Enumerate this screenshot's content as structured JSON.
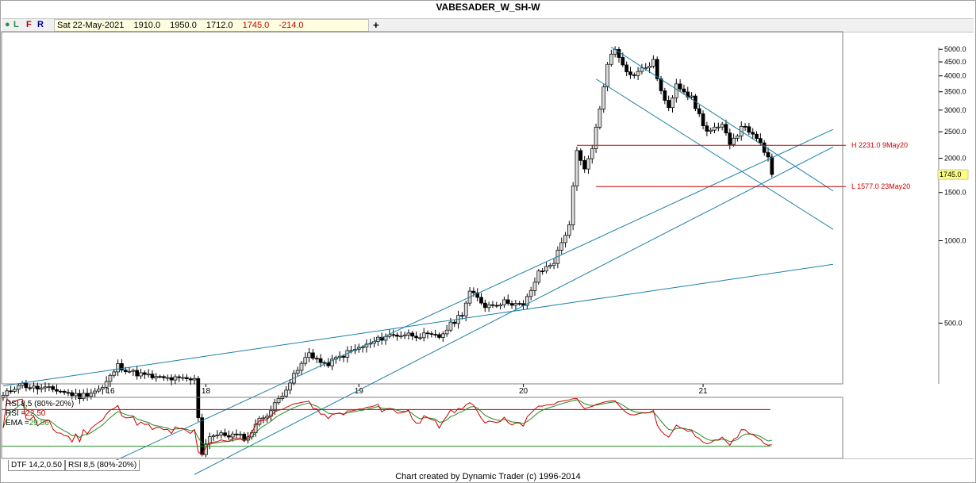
{
  "title": "VABESADER_W_SH-W",
  "toolbar": {
    "buttons": [
      "L",
      "F",
      "R"
    ],
    "date": "Sat 22-May-2021",
    "open": "1910.0",
    "high": "1950.0",
    "low": "1712.0",
    "close": "1745.0",
    "change": "-214.0",
    "plus_label": "+"
  },
  "colors": {
    "trendline": "#1a80a8",
    "level_line": "#cc0000",
    "rsi_line": "#cc0000",
    "ema_line": "#228b22",
    "last_price_bg": "#ffff80"
  },
  "chart_data": [
    {
      "type": "candlestick",
      "scale": "log",
      "ylim": [
        300,
        5800
      ],
      "y_ticks": [
        "500.0",
        "1000.0",
        "1500.0",
        "2000.0",
        "2500.0",
        "3000.0",
        "3500.0",
        "4000.0",
        "4500.0",
        "5000.0"
      ],
      "y_tick_values": [
        500,
        1000,
        1500,
        2000,
        2500,
        3000,
        3500,
        4000,
        4500,
        5000
      ],
      "x_labels": [
        "16",
        "18",
        "19",
        "20",
        "21"
      ],
      "last_price_label": "1745.0",
      "last_price": 1745,
      "levels": [
        {
          "label": "H 2231.0 9May20",
          "value": 2231,
          "from": 150
        },
        {
          "label": "L 1577.0 23May20",
          "value": 1577,
          "from": 155
        }
      ],
      "anchors": [
        {
          "i": 0,
          "v": 270
        },
        {
          "i": 4,
          "v": 300
        },
        {
          "i": 8,
          "v": 290
        },
        {
          "i": 14,
          "v": 285
        },
        {
          "i": 20,
          "v": 270
        },
        {
          "i": 26,
          "v": 290
        },
        {
          "i": 30,
          "v": 350
        },
        {
          "i": 34,
          "v": 330
        },
        {
          "i": 40,
          "v": 315
        },
        {
          "i": 50,
          "v": 310
        },
        {
          "i": 52,
          "v": 168
        },
        {
          "i": 54,
          "v": 195
        },
        {
          "i": 60,
          "v": 195
        },
        {
          "i": 64,
          "v": 190
        },
        {
          "i": 66,
          "v": 215
        },
        {
          "i": 70,
          "v": 240
        },
        {
          "i": 76,
          "v": 320
        },
        {
          "i": 80,
          "v": 390
        },
        {
          "i": 84,
          "v": 350
        },
        {
          "i": 90,
          "v": 390
        },
        {
          "i": 96,
          "v": 420
        },
        {
          "i": 100,
          "v": 450
        },
        {
          "i": 106,
          "v": 455
        },
        {
          "i": 114,
          "v": 445
        },
        {
          "i": 120,
          "v": 545
        },
        {
          "i": 122,
          "v": 650
        },
        {
          "i": 126,
          "v": 580
        },
        {
          "i": 132,
          "v": 600
        },
        {
          "i": 136,
          "v": 575
        },
        {
          "i": 140,
          "v": 760
        },
        {
          "i": 144,
          "v": 840
        },
        {
          "i": 148,
          "v": 1150
        },
        {
          "i": 150,
          "v": 2100
        },
        {
          "i": 152,
          "v": 1800
        },
        {
          "i": 154,
          "v": 2200
        },
        {
          "i": 156,
          "v": 3000
        },
        {
          "i": 158,
          "v": 4500
        },
        {
          "i": 160,
          "v": 5000
        },
        {
          "i": 164,
          "v": 4000
        },
        {
          "i": 168,
          "v": 4300
        },
        {
          "i": 170,
          "v": 4500
        },
        {
          "i": 172,
          "v": 3500
        },
        {
          "i": 174,
          "v": 3000
        },
        {
          "i": 176,
          "v": 3800
        },
        {
          "i": 180,
          "v": 3300
        },
        {
          "i": 184,
          "v": 2500
        },
        {
          "i": 188,
          "v": 2600
        },
        {
          "i": 190,
          "v": 2300
        },
        {
          "i": 194,
          "v": 2650
        },
        {
          "i": 196,
          "v": 2400
        },
        {
          "i": 198,
          "v": 2250
        },
        {
          "i": 200,
          "v": 2000
        },
        {
          "i": 201,
          "v": 1745
        }
      ],
      "trendlines": [
        {
          "from": [
            0,
            295
          ],
          "to": [
            217,
            820
          ]
        },
        {
          "from": [
            27,
            152
          ],
          "to": [
            217,
            2550
          ]
        },
        {
          "from": [
            50,
            140
          ],
          "to": [
            217,
            2200
          ]
        },
        {
          "from": [
            159,
            5100
          ],
          "to": [
            217,
            1520
          ]
        },
        {
          "from": [
            155,
            3900
          ],
          "to": [
            217,
            1100
          ]
        }
      ]
    },
    {
      "type": "line",
      "title": "RSI 8,5 (80%-20%)",
      "ylim": [
        0,
        100
      ],
      "levels": [
        80,
        20
      ],
      "series": [
        {
          "name": "RSI",
          "label": "RSI",
          "value_text": "22.50",
          "last": 22.5
        },
        {
          "name": "EMA",
          "label": "EMA",
          "value_text": "29.86",
          "last": 29.86
        }
      ]
    }
  ],
  "tabs": [
    "DTF 14,2,0.50",
    "RSI 8,5 (80%-20%)"
  ],
  "credit": "Chart created by Dynamic Trader  (c) 1996-2014"
}
